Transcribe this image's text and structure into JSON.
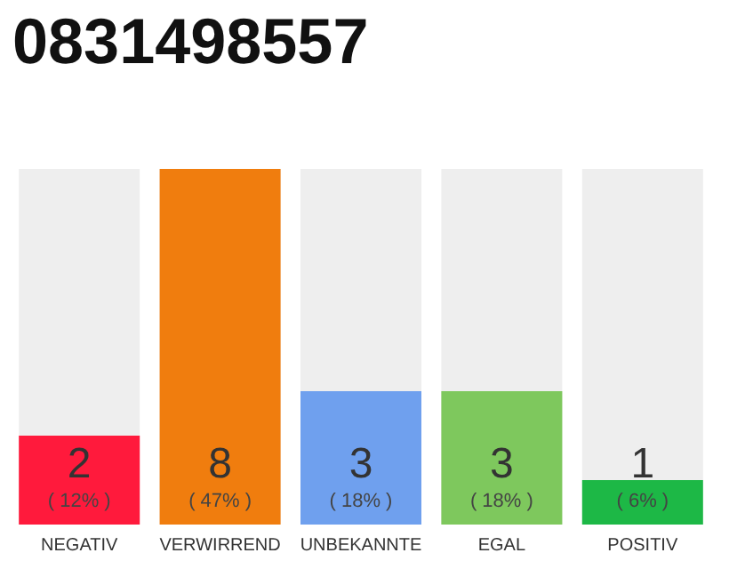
{
  "chart_data": {
    "type": "bar",
    "title": "0831498557",
    "categories": [
      "NEGATIV",
      "VERWIRREND",
      "UNBEKANNTE",
      "EGAL",
      "POSITIV"
    ],
    "values": [
      2,
      8,
      3,
      3,
      1
    ],
    "colors": [
      "#ff1a3c",
      "#f07d0e",
      "#6fa0ee",
      "#7ec85d",
      "#1db846"
    ],
    "value_labels": [
      "2\n( 12% )",
      "8\n( 47% )",
      "3\n( 18% )",
      "3\n( 18% )",
      "1\n( 6% )"
    ]
  }
}
